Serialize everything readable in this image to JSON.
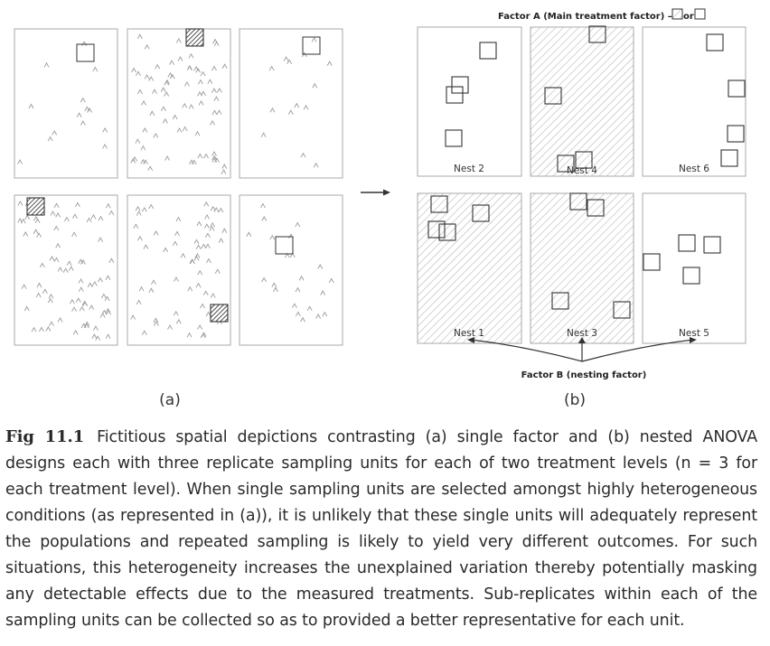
{
  "figure": {
    "panel_a_label": "(a)",
    "panel_b_label": "(b)",
    "factor_a_prefix": "Factor A (Main treatment factor) –",
    "factor_a_or": "or",
    "factor_b_label": "Factor B (nesting factor)",
    "nests": [
      "Nest 2",
      "Nest 4",
      "Nest 6",
      "Nest 1",
      "Nest 3",
      "Nest 5"
    ],
    "colors": {
      "frame": "#aaaaaa",
      "hatch": "#b8b8b8",
      "dark_hatch": "#333333",
      "mark": "#999999"
    }
  },
  "caption": {
    "fig_label": "Fig 11.1",
    "text": "Fictitious spatial depictions contrasting (a) single factor and (b) nested ANOVA designs each with three replicate sampling units for each of two treatment levels (n = 3 for each treatment level). When single sampling units are selected amongst highly heterogeneous conditions (as represented in (a)), it is unlikely that these single units will adequately represent the populations and repeated sampling is likely to yield very different outcomes. For such situations, this heterogeneity increases the unexplained variation thereby potentially masking any detectable effects due to the measured treatments. Sub-replicates within each of the sampling units can be collected so as to provided a better representative for each unit."
  }
}
